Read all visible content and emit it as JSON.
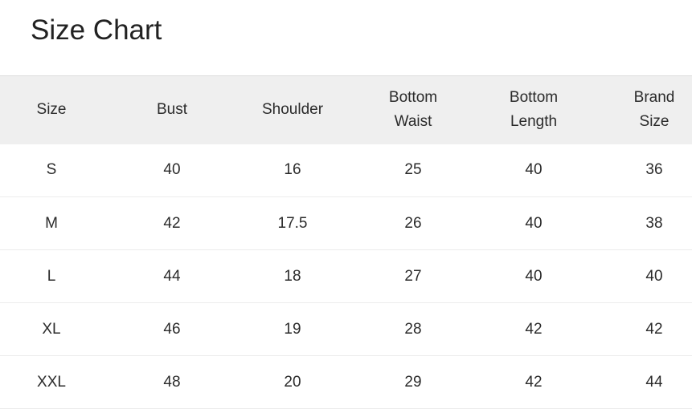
{
  "title": "Size Chart",
  "headers": [
    "Size",
    "Bust",
    "Shoulder",
    "Bottom Waist",
    "Bottom Length",
    "Brand Size"
  ],
  "header_lines": [
    [
      "Size"
    ],
    [
      "Bust"
    ],
    [
      "Shoulder"
    ],
    [
      "Bottom",
      "Waist"
    ],
    [
      "Bottom",
      "Length"
    ],
    [
      "Brand",
      "Size"
    ]
  ],
  "rows": [
    [
      "S",
      "40",
      "16",
      "25",
      "40",
      "36"
    ],
    [
      "M",
      "42",
      "17.5",
      "26",
      "40",
      "38"
    ],
    [
      "L",
      "44",
      "18",
      "27",
      "40",
      "40"
    ],
    [
      "XL",
      "46",
      "19",
      "28",
      "42",
      "42"
    ],
    [
      "XXL",
      "48",
      "20",
      "29",
      "42",
      "44"
    ]
  ],
  "colors": {
    "header_bg": "#efefef",
    "text": "#2b2b2b"
  }
}
